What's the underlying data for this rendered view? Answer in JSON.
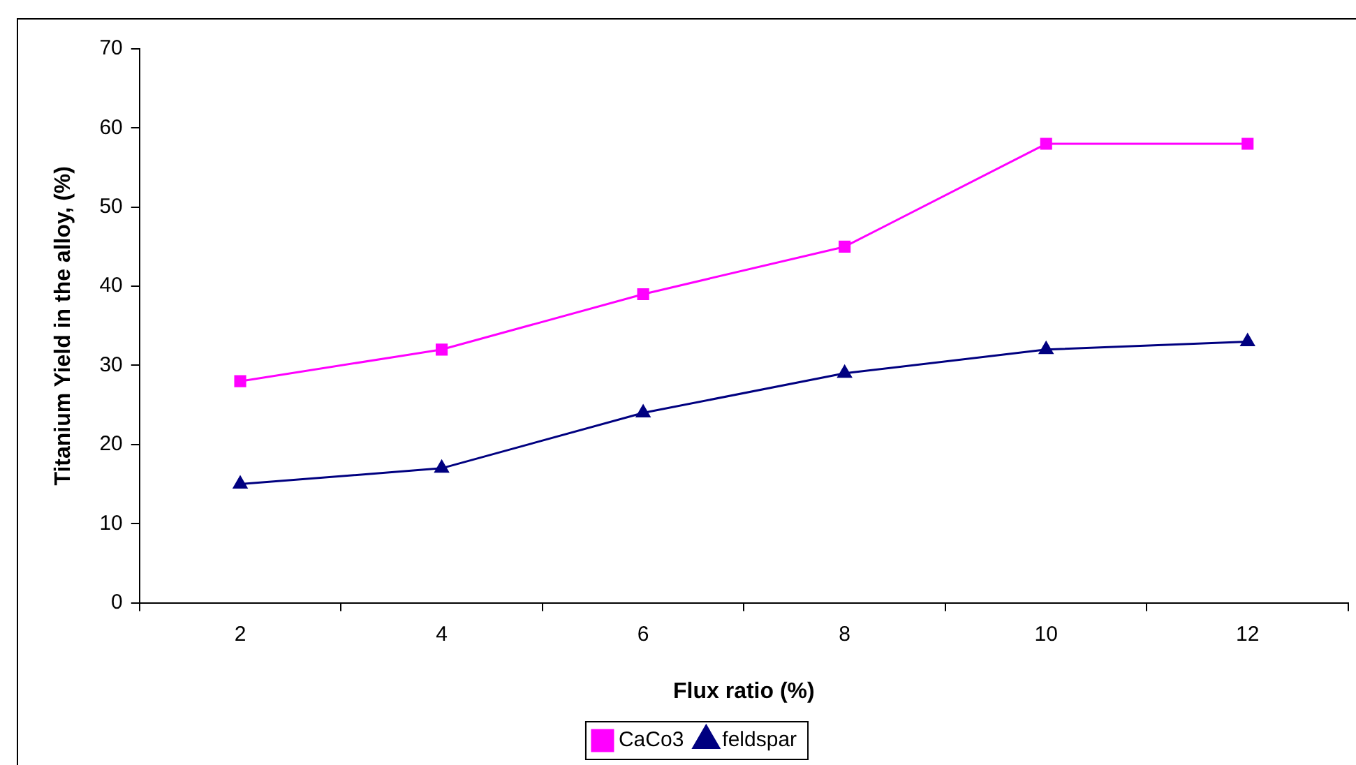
{
  "chart_data": {
    "type": "line",
    "xlabel": "Flux ratio (%)",
    "ylabel": "Titanium Yield in the alloy, (%)",
    "categories": [
      "2",
      "4",
      "6",
      "8",
      "10",
      "12"
    ],
    "series": [
      {
        "name": "CaCo3",
        "color": "#ff00ff",
        "marker": "square",
        "values": [
          28,
          32,
          39,
          45,
          58,
          58
        ]
      },
      {
        "name": "feldspar",
        "color": "#000080",
        "marker": "triangle",
        "values": [
          15,
          17,
          24,
          29,
          32,
          33
        ]
      }
    ],
    "ylim": [
      0,
      70
    ],
    "yticks": [
      0,
      10,
      20,
      30,
      40,
      50,
      60,
      70
    ],
    "grid": false,
    "legend": "bottom",
    "line_style": "solid"
  }
}
